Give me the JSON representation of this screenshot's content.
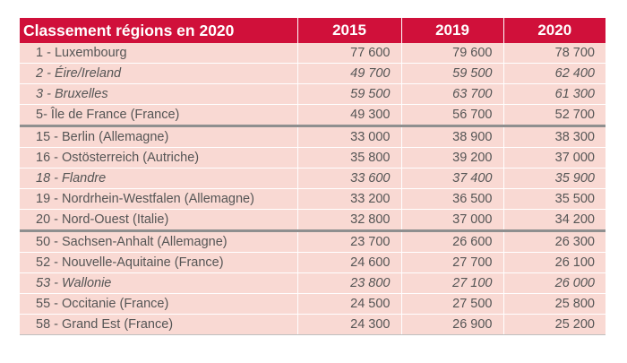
{
  "header": {
    "title": "Classement régions en 2020",
    "years": [
      "2015",
      "2019",
      "2020"
    ]
  },
  "rows": [
    {
      "name": "1 - Luxembourg",
      "v2015": "77 600",
      "v2019": "79 600",
      "v2020": "78 700",
      "italic": false
    },
    {
      "name": "2 - Éire/Ireland",
      "v2015": "49 700",
      "v2019": "59 500",
      "v2020": "62 400",
      "italic": true
    },
    {
      "name": "3 - Bruxelles",
      "v2015": "59 500",
      "v2019": "63 700",
      "v2020": "61 300",
      "italic": true
    },
    {
      "name": "5- Île de France (France)",
      "v2015": "49 300",
      "v2019": "56 700",
      "v2020": "52 700",
      "italic": false
    },
    {
      "name": "15 - Berlin (Allemagne)",
      "v2015": "33 000",
      "v2019": "38 900",
      "v2020": "38 300",
      "italic": false
    },
    {
      "name": "16 - Ostösterreich (Autriche)",
      "v2015": "35 800",
      "v2019": "39 200",
      "v2020": "37 000",
      "italic": false
    },
    {
      "name": "18 - Flandre",
      "v2015": "33 600",
      "v2019": "37 400",
      "v2020": "35 900",
      "italic": true
    },
    {
      "name": "19 - Nordrhein-Westfalen (Allemagne)",
      "v2015": "33 200",
      "v2019": "36 500",
      "v2020": "35 500",
      "italic": false
    },
    {
      "name": "20 - Nord-Ouest (Italie)",
      "v2015": "32 800",
      "v2019": "37 000",
      "v2020": "34 200",
      "italic": false
    },
    {
      "name": "50 - Sachsen-Anhalt (Allemagne)",
      "v2015": "23 700",
      "v2019": "26 600",
      "v2020": "26 300",
      "italic": false
    },
    {
      "name": "52 - Nouvelle-Aquitaine (France)",
      "v2015": "24 600",
      "v2019": "27 700",
      "v2020": "26 100",
      "italic": false
    },
    {
      "name": "53 - Wallonie",
      "v2015": "23 800",
      "v2019": "27 100",
      "v2020": "26 000",
      "italic": true
    },
    {
      "name": "55 - Occitanie (France)",
      "v2015": "24 500",
      "v2019": "27 500",
      "v2020": "25 800",
      "italic": false
    },
    {
      "name": "58 - Grand Est (France)",
      "v2015": "24 300",
      "v2019": "26 900",
      "v2020": "25 200",
      "italic": false
    }
  ],
  "colors": {
    "header_bg": "#d0103a",
    "row_bg": "#f9d9d3",
    "group_separator": "#8f8f8f"
  }
}
